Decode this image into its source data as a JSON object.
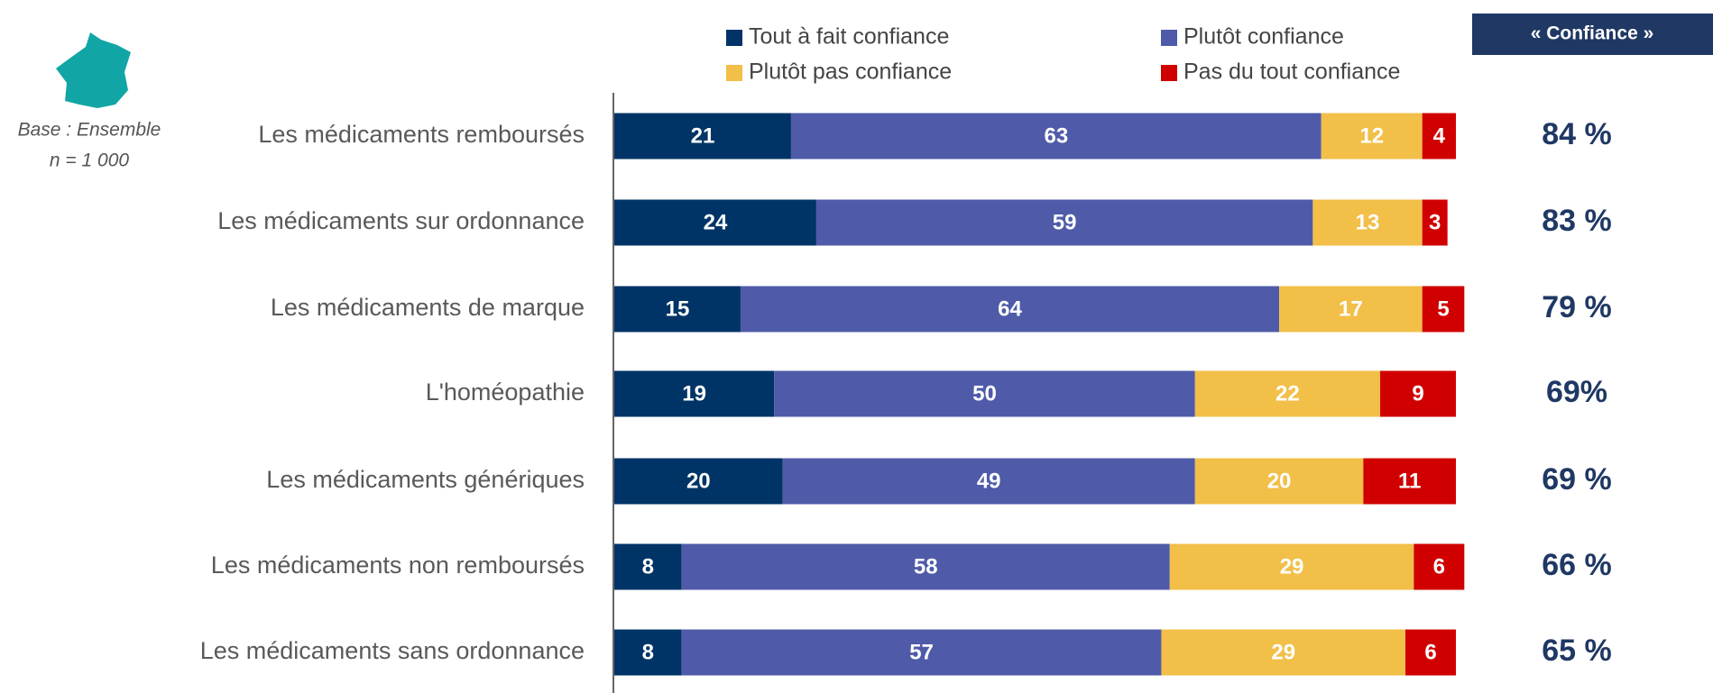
{
  "chart_data": {
    "type": "stacked-bar",
    "note_base": "Base : Ensemble",
    "note_n": "n = 1 000",
    "categories": [
      "Les médicaments remboursés",
      "Les médicaments sur ordonnance",
      "Les médicaments de marque",
      "L'homéopathie",
      "Les médicaments génériques",
      "Les médicaments non remboursés",
      "Les médicaments sans ordonnance"
    ],
    "xlim": [
      0,
      100
    ],
    "series": [
      {
        "name": "Tout à fait confiance",
        "color": "#003466",
        "values": [
          21,
          24,
          15,
          19,
          20,
          8,
          8
        ]
      },
      {
        "name": "Plutôt confiance",
        "color": "#4f5ba8",
        "values": [
          63,
          59,
          64,
          50,
          49,
          58,
          57
        ]
      },
      {
        "name": "Plutôt pas confiance",
        "color": "#f2bf48",
        "values": [
          12,
          13,
          17,
          22,
          20,
          29,
          29
        ]
      },
      {
        "name": "Pas du tout confiance",
        "color": "#d00000",
        "values": [
          4,
          3,
          5,
          9,
          11,
          6,
          6
        ]
      }
    ],
    "confiance": {
      "title": "« Confiance »",
      "values": [
        84,
        83,
        79,
        69,
        69,
        66,
        65
      ],
      "value_labels": [
        "84 %",
        "83 %",
        "79 %",
        "69%",
        "69 %",
        "66 %",
        "65 %"
      ]
    }
  }
}
